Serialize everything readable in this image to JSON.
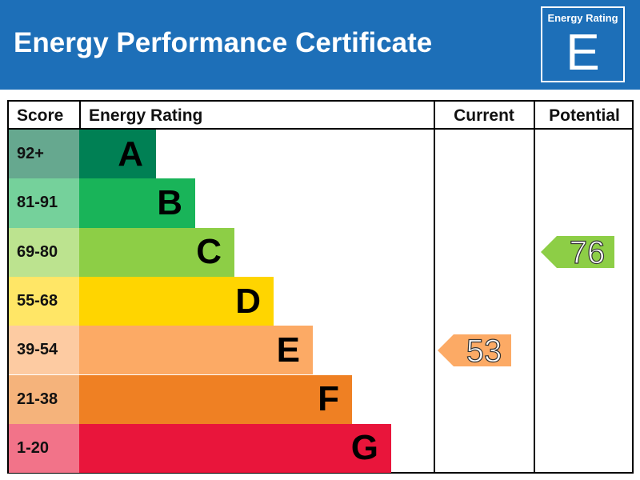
{
  "header": {
    "title": "Energy Performance Certificate",
    "badge_label": "Energy Rating",
    "badge_letter": "E"
  },
  "columns": {
    "score": "Score",
    "rating": "Energy Rating",
    "current": "Current",
    "potential": "Potential"
  },
  "chart_data": {
    "type": "bar",
    "categories": [
      "A",
      "B",
      "C",
      "D",
      "E",
      "F",
      "G"
    ],
    "score_ranges": [
      "92+",
      "81-91",
      "69-80",
      "55-68",
      "39-54",
      "21-38",
      "1-20"
    ],
    "bands": [
      {
        "letter": "A",
        "range": "92+",
        "min": 92,
        "max": 100,
        "color": "#008054",
        "light_color": "#66a88f"
      },
      {
        "letter": "B",
        "range": "81-91",
        "min": 81,
        "max": 91,
        "color": "#19b459",
        "light_color": "#75d19b"
      },
      {
        "letter": "C",
        "range": "69-80",
        "min": 69,
        "max": 80,
        "color": "#8dce46",
        "light_color": "#bce38f"
      },
      {
        "letter": "D",
        "range": "55-68",
        "min": 55,
        "max": 68,
        "color": "#ffd500",
        "light_color": "#ffe666"
      },
      {
        "letter": "E",
        "range": "39-54",
        "min": 39,
        "max": 54,
        "color": "#fcaa65",
        "light_color": "#fdcba2"
      },
      {
        "letter": "F",
        "range": "21-38",
        "min": 21,
        "max": 38,
        "color": "#ef8023",
        "light_color": "#f5b37b"
      },
      {
        "letter": "G",
        "range": "1-20",
        "min": 1,
        "max": 20,
        "color": "#e9153b",
        "light_color": "#f27389"
      }
    ],
    "current": {
      "value": 53,
      "band": "E",
      "color": "#fcaa65"
    },
    "potential": {
      "value": 76,
      "band": "C",
      "color": "#8dce46"
    }
  }
}
